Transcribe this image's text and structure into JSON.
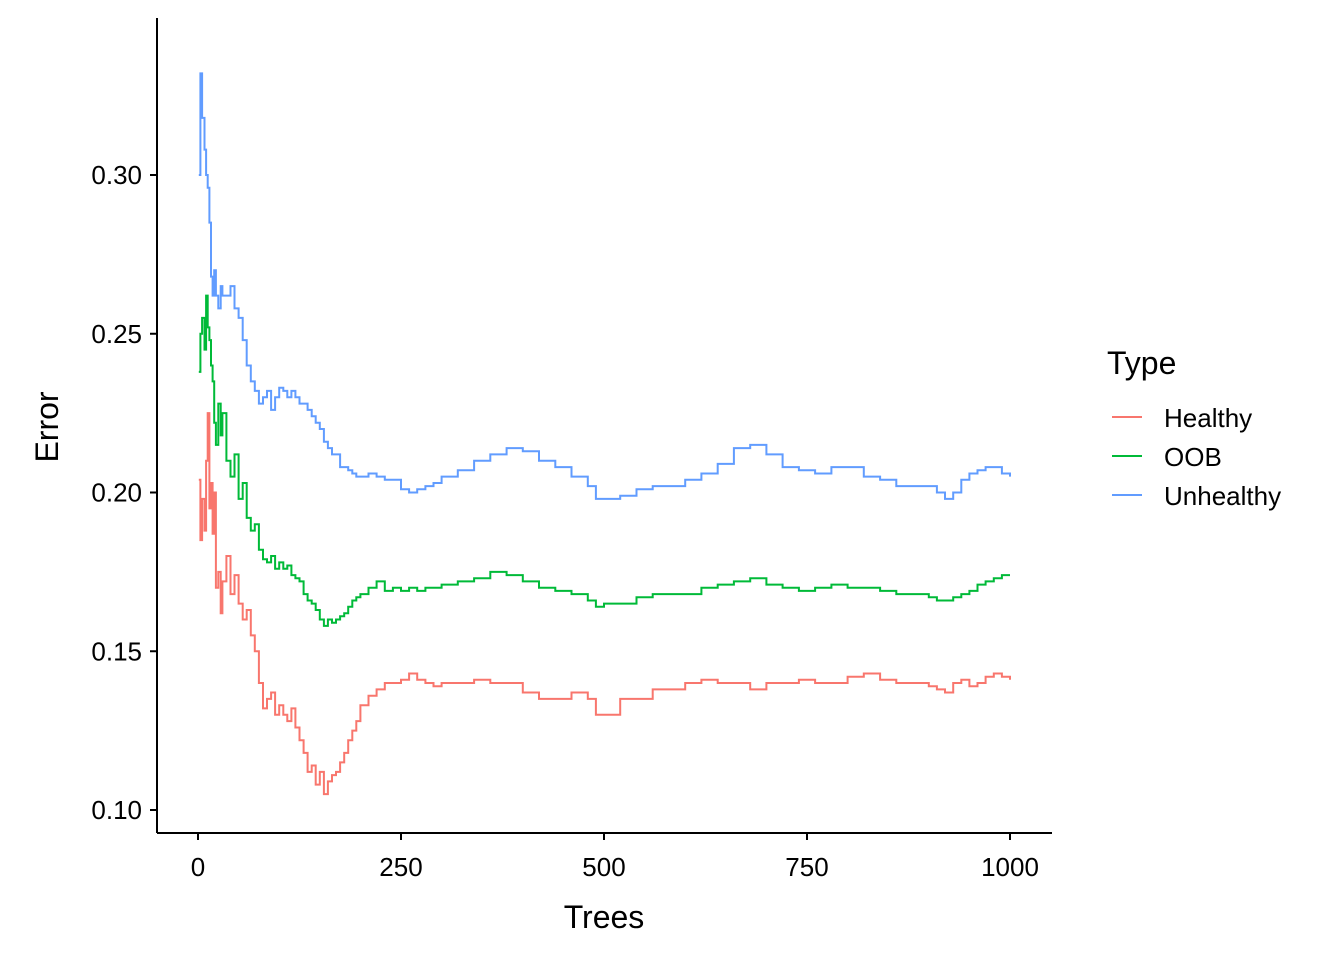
{
  "chart_data": {
    "type": "line",
    "line_style": "step",
    "xlabel": "Trees",
    "ylabel": "Error",
    "xlim": [
      0,
      1000
    ],
    "ylim": [
      0.1,
      0.34
    ],
    "x_ticks": [
      0,
      250,
      500,
      750,
      1000
    ],
    "x_tick_labels": [
      "0",
      "250",
      "500",
      "750",
      "1000"
    ],
    "y_ticks": [
      0.1,
      0.15,
      0.2,
      0.25,
      0.3
    ],
    "y_tick_labels": [
      "0.10",
      "0.15",
      "0.20",
      "0.25",
      "0.30"
    ],
    "grid": false,
    "legend": {
      "title": "Type",
      "position": "right"
    },
    "series": [
      {
        "name": "Healthy",
        "color": "#F8766D",
        "x": [
          1,
          3,
          5,
          8,
          10,
          12,
          14,
          16,
          18,
          20,
          22,
          25,
          28,
          30,
          35,
          40,
          45,
          50,
          55,
          60,
          65,
          70,
          75,
          80,
          85,
          90,
          95,
          100,
          105,
          110,
          115,
          120,
          125,
          130,
          135,
          140,
          145,
          150,
          155,
          160,
          165,
          170,
          175,
          180,
          185,
          190,
          195,
          200,
          210,
          220,
          230,
          240,
          250,
          260,
          270,
          280,
          290,
          300,
          320,
          340,
          360,
          380,
          400,
          420,
          440,
          460,
          480,
          490,
          500,
          520,
          540,
          560,
          580,
          600,
          620,
          640,
          660,
          680,
          700,
          720,
          740,
          760,
          780,
          800,
          820,
          840,
          860,
          880,
          900,
          910,
          920,
          930,
          940,
          950,
          960,
          970,
          980,
          990,
          1000
        ],
        "y": [
          0.204,
          0.185,
          0.198,
          0.188,
          0.21,
          0.225,
          0.195,
          0.203,
          0.187,
          0.2,
          0.17,
          0.175,
          0.162,
          0.172,
          0.18,
          0.168,
          0.174,
          0.165,
          0.16,
          0.163,
          0.155,
          0.15,
          0.14,
          0.132,
          0.135,
          0.137,
          0.13,
          0.133,
          0.13,
          0.128,
          0.132,
          0.126,
          0.122,
          0.118,
          0.112,
          0.114,
          0.108,
          0.112,
          0.105,
          0.109,
          0.111,
          0.112,
          0.115,
          0.118,
          0.122,
          0.125,
          0.128,
          0.133,
          0.136,
          0.138,
          0.14,
          0.14,
          0.141,
          0.143,
          0.141,
          0.14,
          0.139,
          0.14,
          0.14,
          0.141,
          0.14,
          0.14,
          0.137,
          0.135,
          0.135,
          0.137,
          0.135,
          0.13,
          0.13,
          0.135,
          0.135,
          0.138,
          0.138,
          0.14,
          0.141,
          0.14,
          0.14,
          0.138,
          0.14,
          0.14,
          0.141,
          0.14,
          0.14,
          0.142,
          0.143,
          0.141,
          0.14,
          0.14,
          0.139,
          0.138,
          0.137,
          0.14,
          0.141,
          0.139,
          0.14,
          0.142,
          0.143,
          0.142,
          0.141
        ]
      },
      {
        "name": "OOB",
        "color": "#00BA38",
        "x": [
          1,
          3,
          5,
          8,
          10,
          12,
          14,
          16,
          18,
          20,
          22,
          25,
          28,
          30,
          35,
          40,
          45,
          50,
          55,
          60,
          65,
          70,
          75,
          80,
          85,
          90,
          95,
          100,
          105,
          110,
          115,
          120,
          125,
          130,
          135,
          140,
          145,
          150,
          155,
          160,
          165,
          170,
          175,
          180,
          185,
          190,
          195,
          200,
          210,
          220,
          230,
          240,
          250,
          260,
          270,
          280,
          290,
          300,
          320,
          340,
          360,
          380,
          400,
          420,
          440,
          460,
          480,
          490,
          500,
          520,
          540,
          560,
          580,
          600,
          620,
          640,
          660,
          680,
          700,
          720,
          740,
          760,
          780,
          800,
          820,
          840,
          860,
          880,
          900,
          910,
          920,
          930,
          940,
          950,
          960,
          970,
          980,
          990,
          1000
        ],
        "y": [
          0.238,
          0.25,
          0.255,
          0.245,
          0.262,
          0.252,
          0.248,
          0.24,
          0.235,
          0.222,
          0.215,
          0.228,
          0.218,
          0.225,
          0.21,
          0.205,
          0.212,
          0.198,
          0.203,
          0.192,
          0.188,
          0.19,
          0.182,
          0.179,
          0.178,
          0.18,
          0.176,
          0.178,
          0.176,
          0.177,
          0.174,
          0.173,
          0.172,
          0.168,
          0.166,
          0.165,
          0.163,
          0.16,
          0.158,
          0.16,
          0.159,
          0.16,
          0.161,
          0.162,
          0.164,
          0.166,
          0.167,
          0.168,
          0.17,
          0.172,
          0.169,
          0.17,
          0.169,
          0.17,
          0.169,
          0.17,
          0.17,
          0.171,
          0.172,
          0.173,
          0.175,
          0.174,
          0.172,
          0.17,
          0.169,
          0.168,
          0.166,
          0.164,
          0.165,
          0.165,
          0.167,
          0.168,
          0.168,
          0.168,
          0.17,
          0.171,
          0.172,
          0.173,
          0.171,
          0.17,
          0.169,
          0.17,
          0.171,
          0.17,
          0.17,
          0.169,
          0.168,
          0.168,
          0.167,
          0.166,
          0.166,
          0.167,
          0.168,
          0.169,
          0.171,
          0.172,
          0.173,
          0.174,
          0.174
        ]
      },
      {
        "name": "Unhealthy",
        "color": "#619CFF",
        "x": [
          1,
          3,
          5,
          8,
          10,
          12,
          14,
          16,
          18,
          20,
          22,
          25,
          28,
          30,
          35,
          40,
          45,
          50,
          55,
          60,
          65,
          70,
          75,
          80,
          85,
          90,
          95,
          100,
          105,
          110,
          115,
          120,
          125,
          130,
          135,
          140,
          145,
          150,
          155,
          160,
          165,
          170,
          175,
          180,
          185,
          190,
          195,
          200,
          210,
          220,
          230,
          240,
          250,
          260,
          270,
          280,
          290,
          300,
          320,
          340,
          360,
          380,
          400,
          420,
          440,
          460,
          480,
          490,
          500,
          520,
          540,
          560,
          580,
          600,
          620,
          640,
          660,
          680,
          700,
          720,
          740,
          760,
          780,
          800,
          820,
          840,
          860,
          880,
          900,
          910,
          920,
          930,
          940,
          950,
          960,
          970,
          980,
          990,
          1000
        ],
        "y": [
          0.3,
          0.332,
          0.318,
          0.308,
          0.3,
          0.296,
          0.285,
          0.268,
          0.262,
          0.27,
          0.262,
          0.258,
          0.265,
          0.262,
          0.262,
          0.265,
          0.258,
          0.255,
          0.248,
          0.24,
          0.235,
          0.232,
          0.228,
          0.23,
          0.232,
          0.226,
          0.23,
          0.233,
          0.232,
          0.23,
          0.232,
          0.23,
          0.228,
          0.228,
          0.226,
          0.224,
          0.222,
          0.22,
          0.216,
          0.214,
          0.212,
          0.212,
          0.208,
          0.208,
          0.207,
          0.206,
          0.205,
          0.205,
          0.206,
          0.205,
          0.204,
          0.204,
          0.201,
          0.2,
          0.201,
          0.202,
          0.203,
          0.205,
          0.207,
          0.21,
          0.212,
          0.214,
          0.213,
          0.21,
          0.208,
          0.205,
          0.202,
          0.198,
          0.198,
          0.199,
          0.201,
          0.202,
          0.202,
          0.204,
          0.206,
          0.209,
          0.214,
          0.215,
          0.212,
          0.208,
          0.207,
          0.206,
          0.208,
          0.208,
          0.205,
          0.204,
          0.202,
          0.202,
          0.202,
          0.2,
          0.198,
          0.2,
          0.204,
          0.206,
          0.207,
          0.208,
          0.208,
          0.206,
          0.205
        ]
      }
    ]
  }
}
